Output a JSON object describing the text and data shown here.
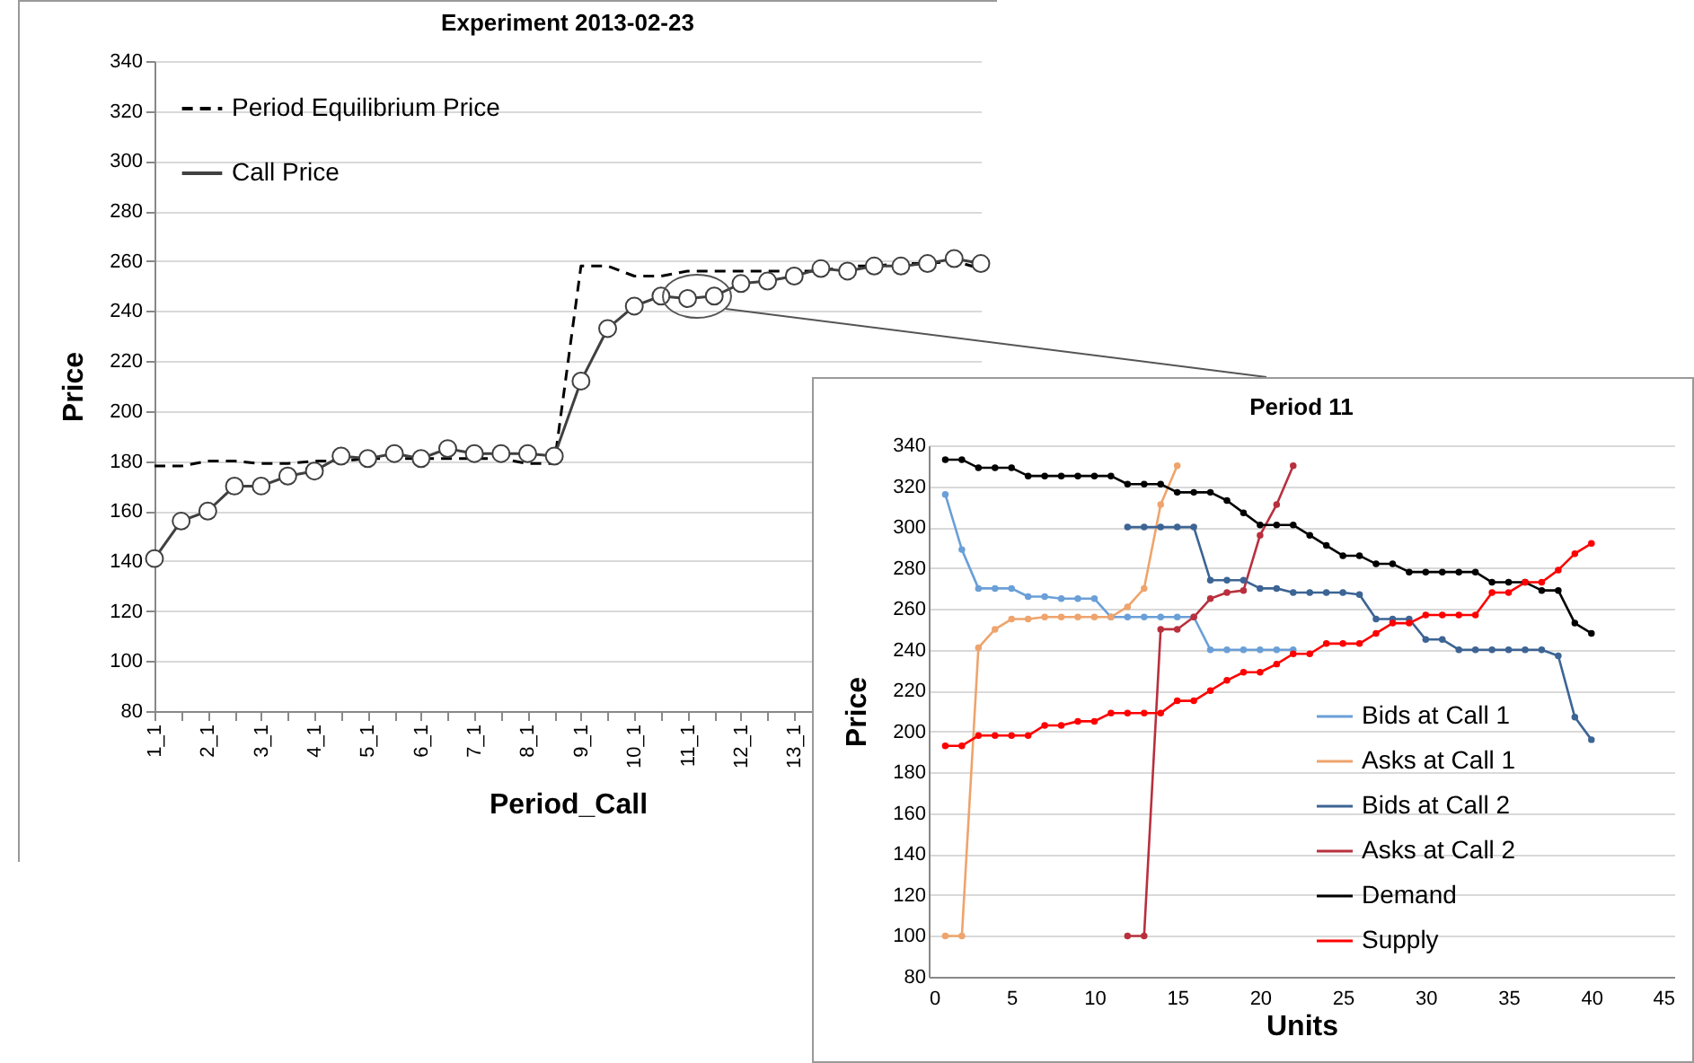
{
  "chart_data": [
    {
      "type": "line",
      "title": "Experiment 2013-02-23",
      "xlabel": "Period_Call",
      "ylabel": "Price",
      "categories": [
        "1_1",
        null,
        "2_1",
        null,
        "3_1",
        null,
        "4_1",
        null,
        "5_1",
        null,
        "6_1",
        null,
        "7_1",
        null,
        "8_1",
        null,
        "9_1",
        null,
        "10_1",
        null,
        "11_1",
        null,
        "12_1",
        null,
        "13_1",
        null,
        null,
        null,
        null,
        null,
        null,
        null
      ],
      "series": [
        {
          "name": "Period Equilibrium Price",
          "color": "#000000",
          "line_style": "dashed",
          "marker": "none",
          "values": [
            178,
            178,
            180,
            180,
            179,
            179,
            180,
            180,
            181,
            181,
            181,
            181,
            181,
            181,
            179,
            179,
            258,
            258,
            254,
            254,
            256,
            256,
            256,
            256,
            256,
            256,
            258,
            258,
            259,
            259,
            260,
            257
          ]
        },
        {
          "name": "Call Price",
          "color": "#404040",
          "line_style": "solid",
          "marker": "circle",
          "values": [
            141,
            156,
            160,
            170,
            170,
            174,
            176,
            182,
            181,
            183,
            181,
            185,
            183,
            183,
            183,
            182,
            212,
            233,
            242,
            246,
            245,
            246,
            251,
            252,
            254,
            257,
            256,
            258,
            258,
            259,
            261,
            259
          ]
        }
      ],
      "ylim": [
        80,
        340
      ],
      "yticks": [
        80,
        100,
        120,
        140,
        160,
        180,
        200,
        220,
        240,
        260,
        280,
        300,
        320,
        340
      ],
      "grid": "y",
      "legend": "top left"
    },
    {
      "type": "line",
      "title": "Period 11",
      "xlabel": "Units",
      "ylabel": "Price",
      "series": [
        {
          "name": "Bids at Call 1",
          "color": "#6a9fd8",
          "x": [
            1,
            2,
            3,
            4,
            5,
            6,
            7,
            8,
            9,
            10,
            11,
            12,
            13,
            14,
            15,
            16,
            17,
            18,
            19,
            20,
            21,
            22
          ],
          "values": [
            316,
            289,
            270,
            270,
            270,
            266,
            266,
            265,
            265,
            265,
            256,
            256,
            256,
            256,
            256,
            256,
            240,
            240,
            240,
            240,
            240,
            240
          ]
        },
        {
          "name": "Asks at Call 1",
          "color": "#eea46c",
          "x": [
            1,
            2,
            3,
            4,
            5,
            6,
            7,
            8,
            9,
            10,
            11,
            12,
            13,
            14,
            15
          ],
          "values": [
            100,
            100,
            241,
            250,
            255,
            255,
            256,
            256,
            256,
            256,
            256,
            261,
            270,
            311,
            330
          ]
        },
        {
          "name": "Bids at Call 2",
          "color": "#3c6494",
          "x": [
            12,
            13,
            14,
            15,
            16,
            17,
            18,
            19,
            20,
            21,
            22,
            23,
            24,
            25,
            26,
            27,
            28,
            29,
            30,
            31,
            32,
            33,
            34,
            35,
            36,
            37,
            38,
            39,
            40
          ],
          "values": [
            300,
            300,
            300,
            300,
            300,
            274,
            274,
            274,
            270,
            270,
            268,
            268,
            268,
            268,
            267,
            255,
            255,
            255,
            245,
            245,
            240,
            240,
            240,
            240,
            240,
            240,
            237,
            207,
            196
          ]
        },
        {
          "name": "Asks at Call 2",
          "color": "#b8303e",
          "x": [
            12,
            13,
            14,
            15,
            16,
            17,
            18,
            19,
            20,
            21,
            22
          ],
          "values": [
            100,
            100,
            250,
            250,
            256,
            265,
            268,
            269,
            296,
            311,
            330
          ]
        },
        {
          "name": "Demand",
          "color": "#000000",
          "x": [
            1,
            2,
            3,
            4,
            5,
            6,
            7,
            8,
            9,
            10,
            11,
            12,
            13,
            14,
            15,
            16,
            17,
            18,
            19,
            20,
            21,
            22,
            23,
            24,
            25,
            26,
            27,
            28,
            29,
            30,
            31,
            32,
            33,
            34,
            35,
            36,
            37,
            38,
            39,
            40
          ],
          "values": [
            333,
            333,
            329,
            329,
            329,
            325,
            325,
            325,
            325,
            325,
            325,
            321,
            321,
            321,
            317,
            317,
            317,
            313,
            307,
            301,
            301,
            301,
            296,
            291,
            286,
            286,
            282,
            282,
            278,
            278,
            278,
            278,
            278,
            273,
            273,
            273,
            269,
            269,
            253,
            248
          ]
        },
        {
          "name": "Supply",
          "color": "#ff0000",
          "x": [
            1,
            2,
            3,
            4,
            5,
            6,
            7,
            8,
            9,
            10,
            11,
            12,
            13,
            14,
            15,
            16,
            17,
            18,
            19,
            20,
            21,
            22,
            23,
            24,
            25,
            26,
            27,
            28,
            29,
            30,
            31,
            32,
            33,
            34,
            35,
            36,
            37,
            38,
            39,
            40
          ],
          "values": [
            193,
            193,
            198,
            198,
            198,
            198,
            203,
            203,
            205,
            205,
            209,
            209,
            209,
            209,
            215,
            215,
            220,
            225,
            229,
            229,
            233,
            238,
            238,
            243,
            243,
            243,
            248,
            253,
            253,
            257,
            257,
            257,
            257,
            268,
            268,
            273,
            273,
            279,
            287,
            292
          ]
        }
      ],
      "xlim": [
        0,
        45
      ],
      "xticks": [
        0,
        5,
        10,
        15,
        20,
        25,
        30,
        35,
        40,
        45
      ],
      "ylim": [
        80,
        340
      ],
      "yticks": [
        80,
        100,
        120,
        140,
        160,
        180,
        200,
        220,
        240,
        260,
        280,
        300,
        320,
        340
      ],
      "grid": "y",
      "legend": "bottom right",
      "marker": "circle"
    }
  ]
}
